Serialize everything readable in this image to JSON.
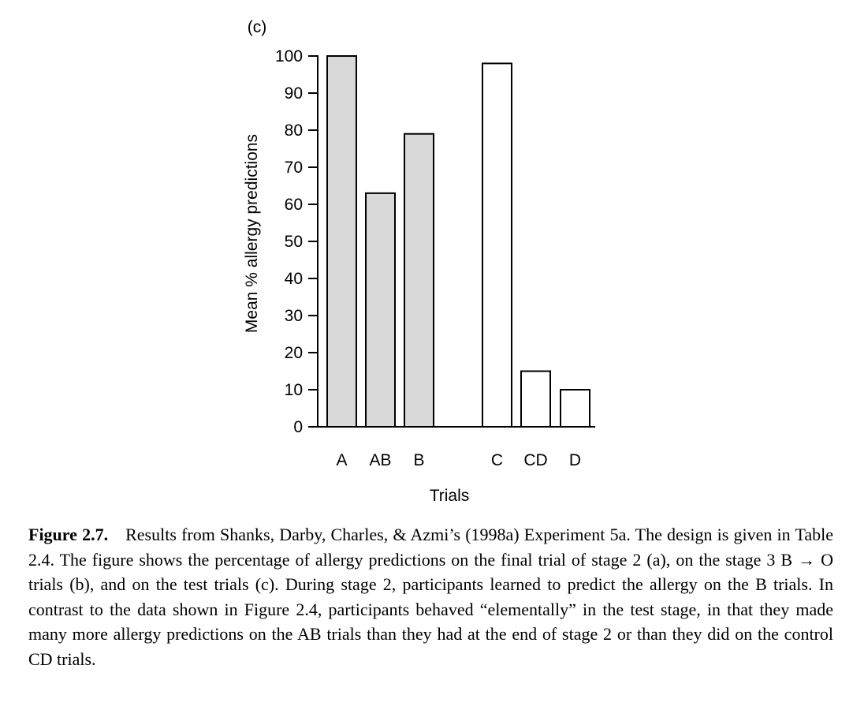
{
  "chart_data": {
    "type": "bar",
    "panel_label": "(c)",
    "categories": [
      "A",
      "AB",
      "B",
      "C",
      "CD",
      "D"
    ],
    "values": [
      100,
      63,
      79,
      98,
      15,
      10
    ],
    "groups": [
      {
        "categories": [
          "A",
          "AB",
          "B"
        ],
        "fill": "#d9d9d9"
      },
      {
        "categories": [
          "C",
          "CD",
          "D"
        ],
        "fill": "#ffffff"
      }
    ],
    "xlabel": "Trials",
    "ylabel": "Mean % allergy predictions",
    "ylim": [
      0,
      100
    ],
    "yticks": [
      0,
      10,
      20,
      30,
      40,
      50,
      60,
      70,
      80,
      90,
      100
    ],
    "grid": false
  },
  "caption": {
    "label": "Figure 2.7.",
    "text": "Results from Shanks, Darby, Charles, & Azmi’s (1998a) Experiment 5a. The design is given in Table 2.4. The figure shows the percentage of allergy predictions on the final trial of stage 2 (a), on the stage 3 B → O trials (b), and on the test trials (c). During stage 2, participants learned to predict the allergy on the B trials. In contrast to the data shown in Figure 2.4, participants behaved “elementally” in the test stage, in that they made many more allergy predictions on the AB trials than they had at the end of stage 2 or than they did on the control CD trials."
  },
  "colors": {
    "bar_group_1": "#d9d9d9",
    "bar_group_2": "#ffffff",
    "stroke": "#000000"
  }
}
